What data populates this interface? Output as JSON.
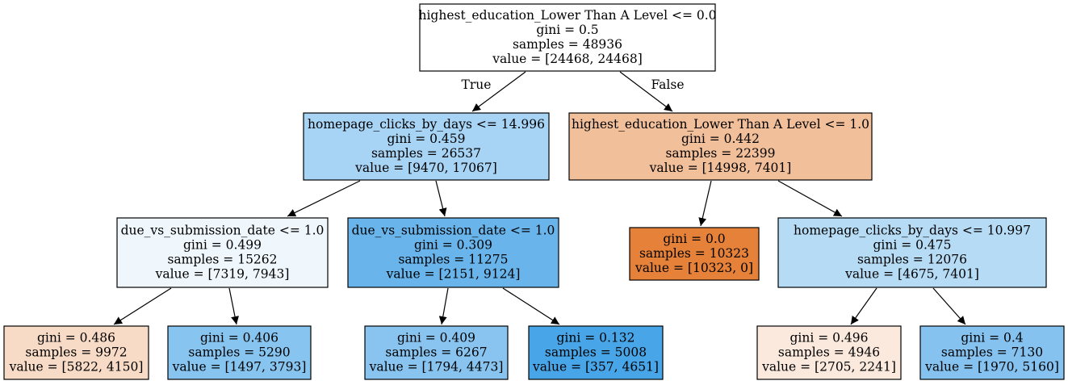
{
  "nodes": [
    {
      "id": "n0",
      "lines": [
        "highest_education_Lower Than A Level <= 0.0",
        "gini = 0.5",
        "samples = 48936",
        "value = [24468, 24468]"
      ],
      "fill": "#ffffff"
    },
    {
      "id": "n1",
      "lines": [
        "homepage_clicks_by_days <= 14.996",
        "gini = 0.459",
        "samples = 26537",
        "value = [9470, 17067]"
      ],
      "fill": "#a7d3f5"
    },
    {
      "id": "n2",
      "lines": [
        "highest_education_Lower Than A Level <= 1.0",
        "gini = 0.442",
        "samples = 22399",
        "value = [14998, 7401]"
      ],
      "fill": "#f2bf9b"
    },
    {
      "id": "n3",
      "lines": [
        "due_vs_submission_date <= 1.0",
        "gini = 0.499",
        "samples = 15262",
        "value = [7319, 7943]"
      ],
      "fill": "#eff7fd"
    },
    {
      "id": "n4",
      "lines": [
        "due_vs_submission_date <= 1.0",
        "gini = 0.309",
        "samples = 11275",
        "value = [2151, 9124]"
      ],
      "fill": "#68b4eb"
    },
    {
      "id": "n5",
      "lines": [
        "gini = 0.0",
        "samples = 10323",
        "value = [10323, 0]"
      ],
      "fill": "#e58139"
    },
    {
      "id": "n6",
      "lines": [
        "homepage_clicks_by_days <= 10.997",
        "gini = 0.475",
        "samples = 12076",
        "value = [4675, 7401]"
      ],
      "fill": "#b6dbf5"
    },
    {
      "id": "n7",
      "lines": [
        "gini = 0.486",
        "samples = 9972",
        "value = [5822, 4150]"
      ],
      "fill": "#f8dbc6"
    },
    {
      "id": "n8",
      "lines": [
        "gini = 0.406",
        "samples = 5290",
        "value = [1497, 3793]"
      ],
      "fill": "#87c4ef"
    },
    {
      "id": "n9",
      "lines": [
        "gini = 0.409",
        "samples = 6267",
        "value = [1794, 4473]"
      ],
      "fill": "#88c4ef"
    },
    {
      "id": "n10",
      "lines": [
        "gini = 0.132",
        "samples = 5008",
        "value = [357, 4651]"
      ],
      "fill": "#48a5e7"
    },
    {
      "id": "n11",
      "lines": [
        "gini = 0.496",
        "samples = 4946",
        "value = [2705, 2241]"
      ],
      "fill": "#fbe9dd"
    },
    {
      "id": "n12",
      "lines": [
        "gini = 0.4",
        "samples = 7130",
        "value = [1970, 5160]"
      ],
      "fill": "#85c2ef"
    }
  ],
  "edges": [
    {
      "from": "n0",
      "to": "n1",
      "label": "True"
    },
    {
      "from": "n0",
      "to": "n2",
      "label": "False"
    },
    {
      "from": "n1",
      "to": "n3",
      "label": ""
    },
    {
      "from": "n1",
      "to": "n4",
      "label": ""
    },
    {
      "from": "n2",
      "to": "n5",
      "label": ""
    },
    {
      "from": "n2",
      "to": "n6",
      "label": ""
    },
    {
      "from": "n3",
      "to": "n7",
      "label": ""
    },
    {
      "from": "n3",
      "to": "n8",
      "label": ""
    },
    {
      "from": "n4",
      "to": "n9",
      "label": ""
    },
    {
      "from": "n4",
      "to": "n10",
      "label": ""
    },
    {
      "from": "n6",
      "to": "n11",
      "label": ""
    },
    {
      "from": "n6",
      "to": "n12",
      "label": ""
    }
  ]
}
